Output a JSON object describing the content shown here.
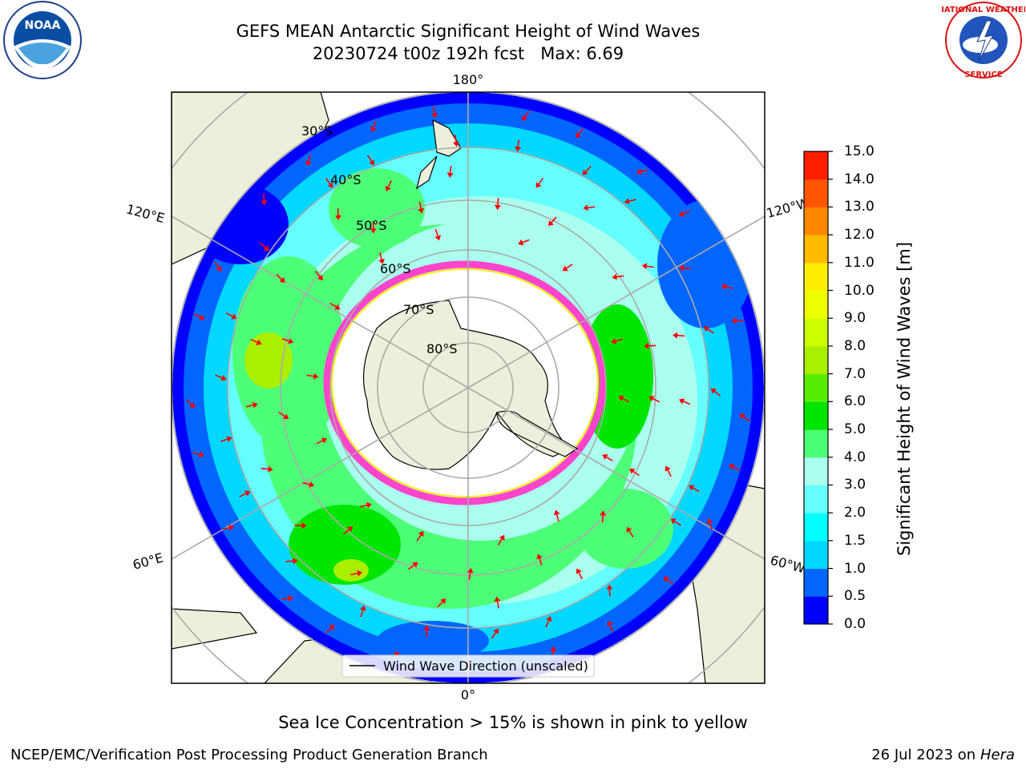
{
  "title": {
    "line1": "GEFS MEAN Antarctic Significant Height of Wind Waves",
    "line2": "20230724 t00z 192h fcst   Max: 6.69"
  },
  "logos": {
    "left": "NOAA",
    "right": "NATIONAL WEATHER SERVICE"
  },
  "map": {
    "projection": "south-polar-stereographic",
    "longitude_labels": {
      "top": "180°",
      "bottom": "0°",
      "left_upper": "120°E",
      "left_lower": "60°E",
      "right_upper": "120°W",
      "right_lower": "60°W"
    },
    "latitude_labels": [
      "30°S",
      "40°S",
      "50°S",
      "60°S",
      "70°S",
      "80°S"
    ],
    "legend_label": "Wind Wave Direction (unscaled)",
    "arrow_color": "#ff0000",
    "ice_color": "#ff44cc",
    "land_color": "#eeeedc"
  },
  "colorbar": {
    "label": "Significant Height of Wind Waves [m]",
    "ticks": [
      "0.0",
      "0.5",
      "1.0",
      "1.5",
      "2.0",
      "3.0",
      "4.0",
      "5.0",
      "6.0",
      "7.0",
      "8.0",
      "9.0",
      "10.0",
      "11.0",
      "12.0",
      "13.0",
      "14.0",
      "15.0"
    ],
    "colors": [
      "#0000ff",
      "#0066ff",
      "#00d8ff",
      "#00ffff",
      "#66ffff",
      "#aaffee",
      "#4dff77",
      "#00e600",
      "#55ee00",
      "#aaee00",
      "#ccff00",
      "#eeff00",
      "#ffee00",
      "#ffbb00",
      "#ff8800",
      "#ff5500",
      "#ff1f00"
    ]
  },
  "footnote": "Sea Ice Concentration > 15% is shown in pink to yellow",
  "credit": {
    "left": "NCEP/EMC/Verification Post Processing Product Generation Branch",
    "right_prefix": "26 Jul 2023 on ",
    "right_host": "Hera"
  }
}
